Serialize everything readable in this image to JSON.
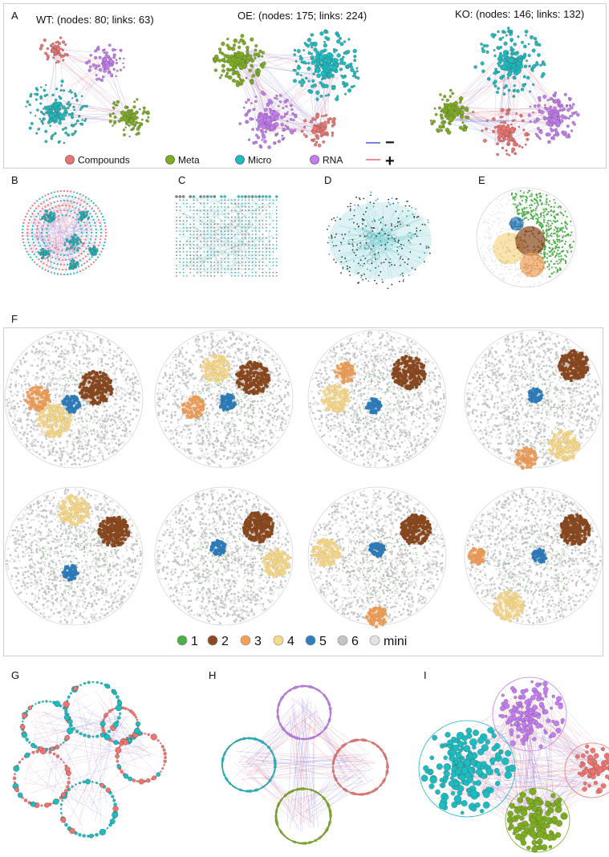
{
  "panels": {
    "A": "A",
    "B": "B",
    "C": "C",
    "D": "D",
    "E": "E",
    "F": "F",
    "G": "G",
    "H": "H",
    "I": "I"
  },
  "network_titles": {
    "wt": "WT: (nodes: 80; links: 63)",
    "oe": "OE: (nodes: 175; links: 224)",
    "ko": "KO: (nodes: 146; links: 132)"
  },
  "type_legend": [
    {
      "label": "Compounds",
      "color": "#f07470"
    },
    {
      "label": "Meta",
      "color": "#7cae1e"
    },
    {
      "label": "Micro",
      "color": "#19bdc2"
    },
    {
      "label": "RNA",
      "color": "#c77cf5"
    }
  ],
  "link_legend": {
    "negative": {
      "symbol": "−",
      "color": "#7b82e8"
    },
    "positive": {
      "symbol": "+",
      "color": "#f08a95"
    }
  },
  "module_legend": [
    {
      "label": "1",
      "color": "#4daf4a"
    },
    {
      "label": "2",
      "color": "#8c4a20"
    },
    {
      "label": "3",
      "color": "#f0a05a"
    },
    {
      "label": "4",
      "color": "#f7d98c"
    },
    {
      "label": "5",
      "color": "#2f7fbf"
    },
    {
      "label": "6",
      "color": "#c4c4c4"
    },
    {
      "label": "mini",
      "color": "#e3e3e3"
    }
  ]
}
